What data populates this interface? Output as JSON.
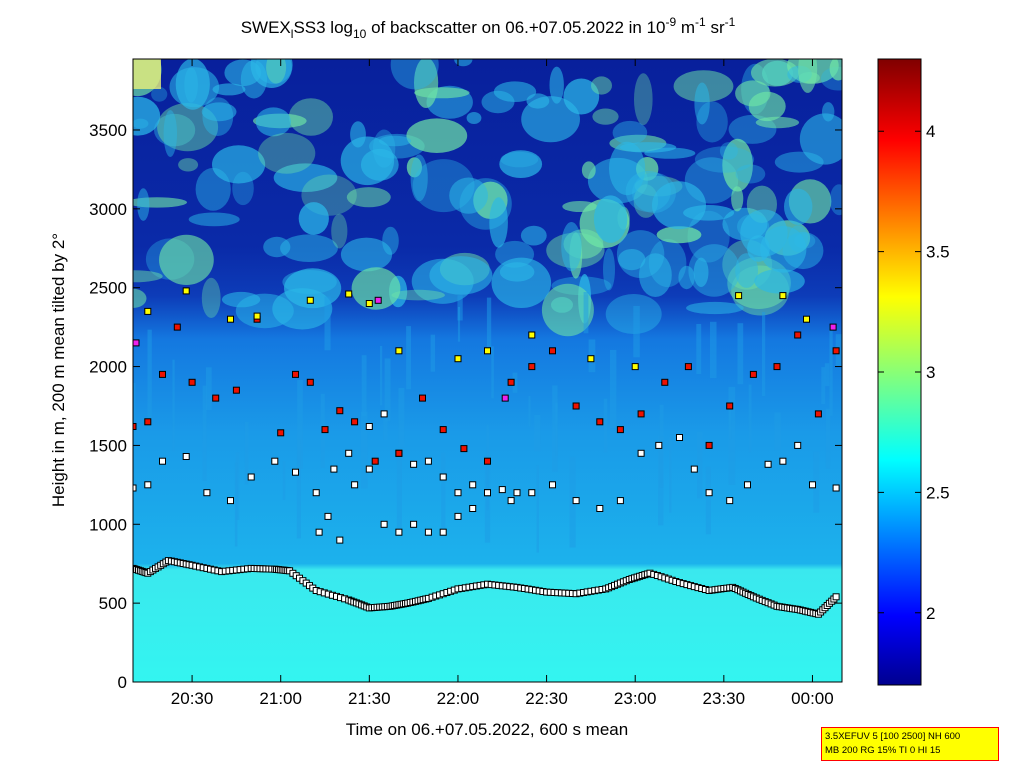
{
  "chart_data": {
    "type": "heatmap",
    "title": {
      "base": "SWEX",
      "sub1": "l",
      "mid": "SS3 log",
      "sub2": "10",
      "after": " of backscatter on 06.+07.05.2022 in 10",
      "sup1": "-9",
      "unit_m": " m",
      "sup2": "-1",
      "unit_sr": " sr",
      "sup3": "-1"
    },
    "xlabel": "Time on 06.+07.05.2022, 600 s mean",
    "ylabel": "Height in m, 200 m mean tilted by 2°",
    "x_ticks": [
      "20:30",
      "21:00",
      "21:30",
      "22:00",
      "22:30",
      "23:00",
      "23:30",
      "00:00"
    ],
    "x_tick_minutes": [
      1230,
      1260,
      1290,
      1320,
      1350,
      1380,
      1410,
      1440
    ],
    "xlim_minutes": [
      1210,
      1450
    ],
    "y_ticks": [
      0,
      500,
      1000,
      1500,
      2000,
      2500,
      3000,
      3500
    ],
    "ylim": [
      0,
      3950
    ],
    "colorbar": {
      "ticks": [
        "2",
        "2.5",
        "3",
        "3.5",
        "4"
      ],
      "tick_values": [
        2,
        2.5,
        3,
        3.5,
        4
      ],
      "range": [
        1.7,
        4.3
      ],
      "colormap": "jet"
    },
    "colors": {
      "sky_dark": "#0a1f9e",
      "aerosol_mid": "#1aa3e6",
      "boundary": "#33f0ee",
      "cloud": "#5de0a0",
      "marker_white": "#ffffff",
      "marker_yellow": "#ffff00",
      "marker_red": "#ee1100",
      "marker_magenta": "#ee22ee"
    },
    "series": [
      {
        "marker": "white-square",
        "layer": "mixing-layer-height",
        "x": [
          1210,
          1215,
          1222,
          1230,
          1240,
          1250,
          1258,
          1263,
          1272,
          1283,
          1290,
          1297,
          1303,
          1310,
          1320,
          1330,
          1340,
          1350,
          1360,
          1370,
          1378,
          1385,
          1395,
          1405,
          1413,
          1420,
          1428,
          1435,
          1442,
          1448
        ],
        "y": [
          720,
          690,
          770,
          740,
          700,
          720,
          715,
          705,
          580,
          520,
          470,
          480,
          500,
          530,
          590,
          620,
          600,
          570,
          560,
          590,
          650,
          690,
          630,
          580,
          600,
          540,
          480,
          460,
          430,
          540
        ]
      },
      {
        "marker": "white-square",
        "layer": "aerosol-layer-lower",
        "x": [
          1210,
          1215,
          1220,
          1228,
          1235,
          1243,
          1250,
          1258,
          1265,
          1272,
          1278,
          1283,
          1290,
          1295,
          1300,
          1305,
          1310,
          1315,
          1320,
          1325,
          1330,
          1338,
          1345,
          1352,
          1360,
          1368,
          1375,
          1382,
          1388,
          1395,
          1400,
          1405,
          1412,
          1418,
          1425,
          1430,
          1435,
          1440,
          1448
        ],
        "y": [
          1230,
          1250,
          1400,
          1430,
          1200,
          1150,
          1300,
          1400,
          1330,
          1200,
          1350,
          1450,
          1620,
          1700,
          1450,
          1380,
          1400,
          1300,
          1200,
          1250,
          1200,
          1150,
          1200,
          1250,
          1150,
          1100,
          1150,
          1450,
          1500,
          1550,
          1350,
          1200,
          1150,
          1250,
          1380,
          1400,
          1500,
          1250,
          1230
        ]
      },
      {
        "marker": "white-square",
        "layer": "gradient-layer",
        "x": [
          1273,
          1276,
          1280,
          1285,
          1290,
          1295,
          1300,
          1305,
          1310,
          1315,
          1320,
          1325,
          1330,
          1335,
          1340
        ],
        "y": [
          950,
          1050,
          900,
          1250,
          1350,
          1000,
          950,
          1000,
          950,
          950,
          1050,
          1100,
          1200,
          1220,
          1200
        ]
      },
      {
        "marker": "red-square",
        "layer": "upper-aerosol-layer",
        "x": [
          1210,
          1215,
          1220,
          1225,
          1230,
          1238,
          1245,
          1252,
          1260,
          1265,
          1270,
          1275,
          1280,
          1285,
          1292,
          1300,
          1308,
          1315,
          1322,
          1330,
          1338,
          1345,
          1352,
          1360,
          1368,
          1375,
          1382,
          1390,
          1398,
          1405,
          1412,
          1420,
          1428,
          1435,
          1442,
          1448
        ],
        "y": [
          1620,
          1650,
          1950,
          2250,
          1900,
          1800,
          1850,
          2300,
          1580,
          1950,
          1900,
          1600,
          1720,
          1650,
          1400,
          1450,
          1800,
          1600,
          1480,
          1400,
          1900,
          2000,
          2100,
          1750,
          1650,
          1600,
          1700,
          1900,
          2000,
          1500,
          1750,
          1950,
          2000,
          2200,
          1700,
          2100
        ]
      },
      {
        "marker": "yellow-square",
        "layer": "top-detections",
        "x": [
          1215,
          1228,
          1243,
          1252,
          1270,
          1283,
          1290,
          1300,
          1320,
          1330,
          1345,
          1365,
          1380,
          1415,
          1430,
          1438
        ],
        "y": [
          2350,
          2480,
          2300,
          2320,
          2420,
          2460,
          2400,
          2100,
          2050,
          2100,
          2200,
          2050,
          2000,
          2450,
          2450,
          2300
        ]
      },
      {
        "marker": "magenta-square",
        "layer": "top-detections",
        "x": [
          1211,
          1293,
          1336,
          1447
        ],
        "y": [
          2150,
          2420,
          1800,
          2250
        ]
      }
    ]
  },
  "info_box": {
    "line1": "3.5XEFUV 5 [100 2500] NH 600",
    "line2": "MB 200 RG 15% TI 0 HI 15"
  }
}
